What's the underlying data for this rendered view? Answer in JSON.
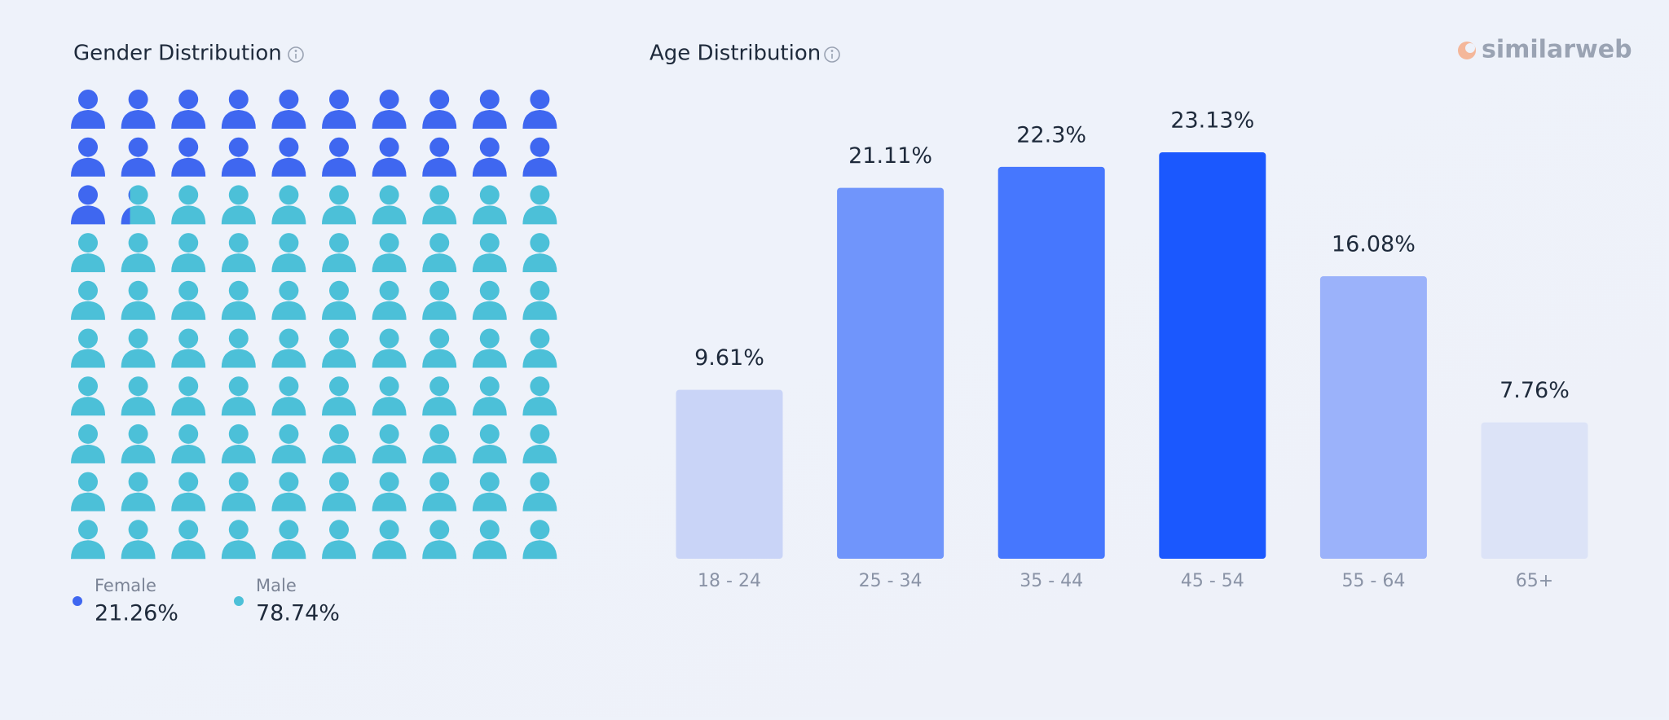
{
  "brand": "similarweb",
  "chart_data": [
    {
      "type": "waffle",
      "title": "Gender Distribution",
      "series": [
        {
          "name": "Female",
          "color": "#3f67f0",
          "values": [
            21.26
          ],
          "value_labels": [
            "21.26%"
          ]
        },
        {
          "name": "Male",
          "color": "#4cc0d8",
          "values": [
            78.74
          ],
          "value_labels": [
            "78.74%"
          ]
        }
      ]
    },
    {
      "type": "bar",
      "title": "Age Distribution",
      "categories": [
        "18 - 24",
        "25 - 34",
        "35 - 44",
        "45 - 54",
        "55 - 64",
        "65+"
      ],
      "values": [
        9.61,
        21.11,
        22.3,
        23.13,
        16.08,
        7.76
      ],
      "value_labels": [
        "9.61%",
        "21.11%",
        "22.3%",
        "23.13%",
        "16.08%",
        "7.76%"
      ],
      "colors": [
        "#c9d4f7",
        "#7095fb",
        "#4677fe",
        "#1b58fe",
        "#9bb2fa",
        "#dce3f7"
      ]
    }
  ]
}
